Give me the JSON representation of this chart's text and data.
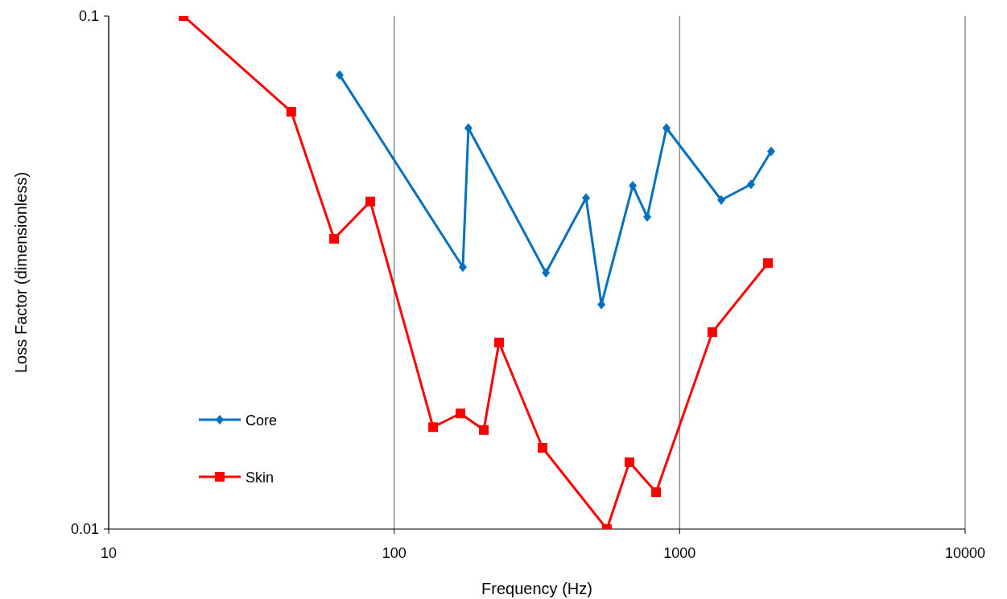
{
  "chart_data": {
    "type": "line",
    "xlabel": "Frequency (Hz)",
    "ylabel": "Loss Factor (dimensionless)",
    "log": "xy",
    "xlim": [
      10,
      10000
    ],
    "ylim": [
      0.01,
      0.1
    ],
    "xticks": [
      10,
      100,
      1000,
      10000
    ],
    "yticks": [
      0.01,
      0.1
    ],
    "grid": "x",
    "legend": "bottom left",
    "series": [
      {
        "name": "Core",
        "color": "#0070c0",
        "marker": "diamond",
        "x": [
          64.4,
          174,
          182,
          340,
          470,
          532,
          685,
          770,
          899,
          1399,
          1778,
          2092
        ],
        "values": [
          0.0768,
          0.0324,
          0.0605,
          0.0316,
          0.0442,
          0.0274,
          0.0467,
          0.0406,
          0.0605,
          0.0438,
          0.047,
          0.0545
        ]
      },
      {
        "name": "Skin",
        "color": "#ff0000",
        "marker": "square",
        "x": [
          18.3,
          43.6,
          61.6,
          82.5,
          136.9,
          170.7,
          206,
          233,
          331,
          556,
          667,
          827,
          1302,
          2038
        ],
        "values": [
          0.1,
          0.0651,
          0.0368,
          0.0435,
          0.0158,
          0.0168,
          0.0156,
          0.0231,
          0.0144,
          0.01,
          0.0135,
          0.0118,
          0.0242,
          0.033
        ]
      }
    ]
  }
}
